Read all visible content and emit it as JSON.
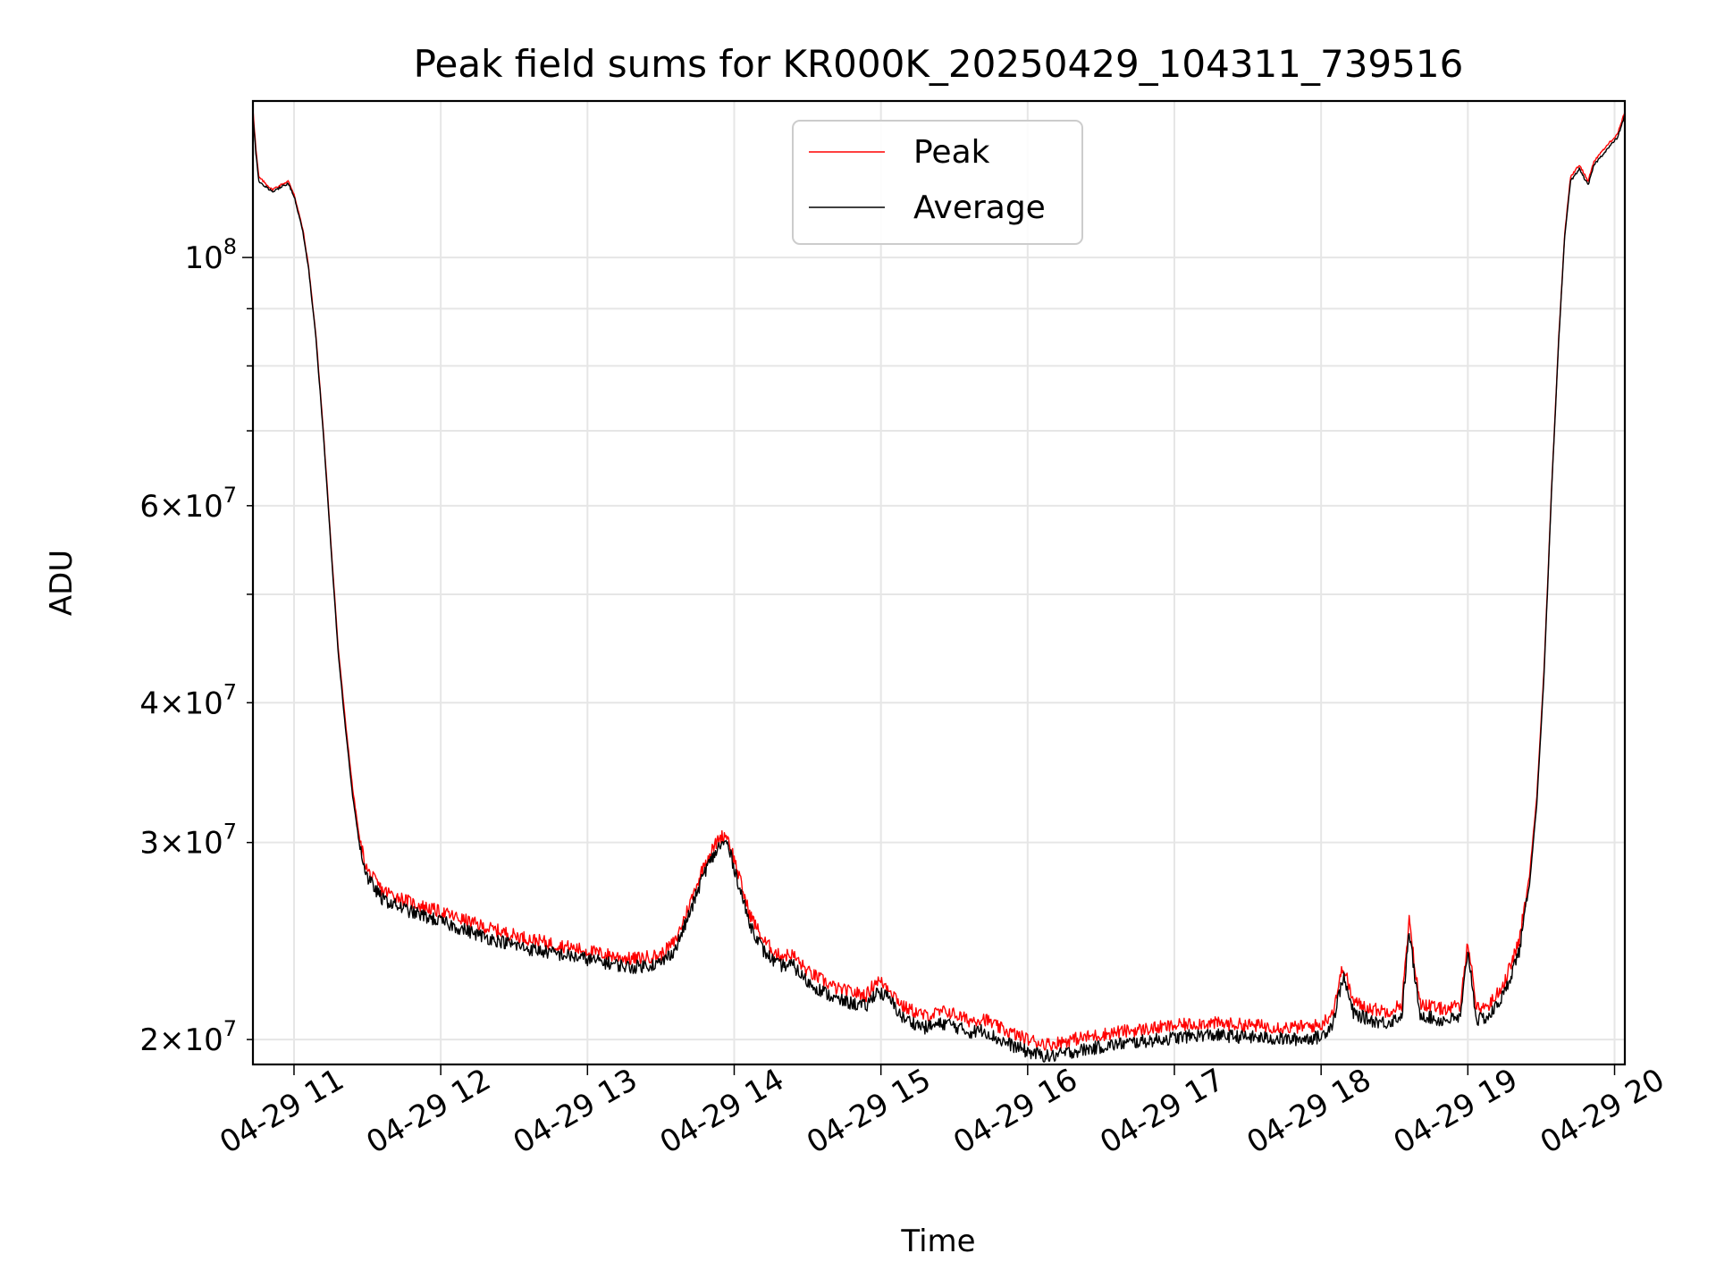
{
  "chart_data": {
    "type": "line",
    "title": "Peak field sums for KR000K_20250429_104311_739516",
    "xlabel": "Time",
    "ylabel": "ADU",
    "x_range_hours": [
      10.72,
      20.07
    ],
    "y_scale": "log",
    "ylim": [
      19000000,
      138000000
    ],
    "grid": true,
    "legend_position": "top-center",
    "x_ticks": [
      {
        "hour": 11,
        "label": "04-29 11"
      },
      {
        "hour": 12,
        "label": "04-29 12"
      },
      {
        "hour": 13,
        "label": "04-29 13"
      },
      {
        "hour": 14,
        "label": "04-29 14"
      },
      {
        "hour": 15,
        "label": "04-29 15"
      },
      {
        "hour": 16,
        "label": "04-29 16"
      },
      {
        "hour": 17,
        "label": "04-29 17"
      },
      {
        "hour": 18,
        "label": "04-29 18"
      },
      {
        "hour": 19,
        "label": "04-29 19"
      },
      {
        "hour": 20,
        "label": "04-29 20"
      }
    ],
    "y_major_ticks": [
      {
        "value": 100000000,
        "base": "10",
        "exp": "8"
      }
    ],
    "y_minor_labeled_ticks": [
      {
        "value": 20000000,
        "mant": "2",
        "base": "10",
        "exp": "7"
      },
      {
        "value": 30000000,
        "mant": "3",
        "base": "10",
        "exp": "7"
      },
      {
        "value": 40000000,
        "mant": "4",
        "base": "10",
        "exp": "7"
      },
      {
        "value": 60000000,
        "mant": "6",
        "base": "10",
        "exp": "7"
      }
    ],
    "y_minor_unlabeled_ticks": [
      50000000,
      70000000,
      80000000,
      90000000
    ],
    "series": [
      {
        "name": "Peak",
        "color": "#ff0000",
        "points": [
          [
            10.72,
            136000000
          ],
          [
            10.74,
            125000000
          ],
          [
            10.76,
            118000000
          ],
          [
            10.85,
            115000000
          ],
          [
            10.96,
            117000000
          ],
          [
            11.0,
            114000000
          ],
          [
            11.06,
            106000000
          ],
          [
            11.1,
            98000000
          ],
          [
            11.15,
            85000000
          ],
          [
            11.2,
            70000000
          ],
          [
            11.25,
            56000000
          ],
          [
            11.3,
            45000000
          ],
          [
            11.35,
            38500000
          ],
          [
            11.4,
            33500000
          ],
          [
            11.45,
            30000000
          ],
          [
            11.5,
            28300000
          ],
          [
            11.6,
            27200000
          ],
          [
            11.8,
            26500000
          ],
          [
            12.0,
            26000000
          ],
          [
            12.3,
            25200000
          ],
          [
            12.6,
            24600000
          ],
          [
            13.0,
            24000000
          ],
          [
            13.3,
            23600000
          ],
          [
            13.5,
            23800000
          ],
          [
            13.6,
            24500000
          ],
          [
            13.7,
            26500000
          ],
          [
            13.8,
            28800000
          ],
          [
            13.9,
            30300000
          ],
          [
            13.95,
            30500000
          ],
          [
            14.0,
            29000000
          ],
          [
            14.1,
            26000000
          ],
          [
            14.2,
            24500000
          ],
          [
            14.3,
            23800000
          ],
          [
            14.4,
            23800000
          ],
          [
            14.5,
            23000000
          ],
          [
            14.7,
            22200000
          ],
          [
            14.9,
            21900000
          ],
          [
            14.97,
            22600000
          ],
          [
            15.05,
            22300000
          ],
          [
            15.15,
            21400000
          ],
          [
            15.3,
            21000000
          ],
          [
            15.45,
            21200000
          ],
          [
            15.6,
            20800000
          ],
          [
            15.7,
            20900000
          ],
          [
            15.8,
            20500000
          ],
          [
            16.0,
            20000000
          ],
          [
            16.15,
            19800000
          ],
          [
            16.3,
            20000000
          ],
          [
            16.6,
            20300000
          ],
          [
            16.9,
            20500000
          ],
          [
            17.2,
            20700000
          ],
          [
            17.5,
            20600000
          ],
          [
            17.8,
            20500000
          ],
          [
            18.0,
            20600000
          ],
          [
            18.08,
            21200000
          ],
          [
            18.15,
            23300000
          ],
          [
            18.22,
            21600000
          ],
          [
            18.35,
            21300000
          ],
          [
            18.45,
            21200000
          ],
          [
            18.55,
            21500000
          ],
          [
            18.6,
            25500000
          ],
          [
            18.67,
            21600000
          ],
          [
            18.8,
            21300000
          ],
          [
            18.95,
            21400000
          ],
          [
            19.0,
            24600000
          ],
          [
            19.06,
            21300000
          ],
          [
            19.15,
            21500000
          ],
          [
            19.25,
            22500000
          ],
          [
            19.35,
            24500000
          ],
          [
            19.42,
            28000000
          ],
          [
            19.47,
            33000000
          ],
          [
            19.52,
            43000000
          ],
          [
            19.57,
            62000000
          ],
          [
            19.62,
            85000000
          ],
          [
            19.66,
            105000000
          ],
          [
            19.7,
            118000000
          ],
          [
            19.76,
            121000000
          ],
          [
            19.82,
            117000000
          ],
          [
            19.86,
            122000000
          ],
          [
            19.95,
            126000000
          ],
          [
            20.02,
            129000000
          ],
          [
            20.07,
            135000000
          ]
        ]
      },
      {
        "name": "Average",
        "color": "#000000",
        "points": [
          [
            10.72,
            134000000
          ],
          [
            10.74,
            124000000
          ],
          [
            10.76,
            117000000
          ],
          [
            10.85,
            114500000
          ],
          [
            10.96,
            116500000
          ],
          [
            11.0,
            113500000
          ],
          [
            11.06,
            105500000
          ],
          [
            11.1,
            97500000
          ],
          [
            11.15,
            84500000
          ],
          [
            11.2,
            69500000
          ],
          [
            11.25,
            55500000
          ],
          [
            11.3,
            44500000
          ],
          [
            11.35,
            38000000
          ],
          [
            11.4,
            33000000
          ],
          [
            11.45,
            29600000
          ],
          [
            11.5,
            27900000
          ],
          [
            11.6,
            26700000
          ],
          [
            11.8,
            26000000
          ],
          [
            12.0,
            25500000
          ],
          [
            12.3,
            24700000
          ],
          [
            12.6,
            24100000
          ],
          [
            13.0,
            23600000
          ],
          [
            13.3,
            23200000
          ],
          [
            13.5,
            23400000
          ],
          [
            13.6,
            24100000
          ],
          [
            13.7,
            26000000
          ],
          [
            13.8,
            28300000
          ],
          [
            13.9,
            29800000
          ],
          [
            13.95,
            30000000
          ],
          [
            14.0,
            28500000
          ],
          [
            14.1,
            25500000
          ],
          [
            14.2,
            24000000
          ],
          [
            14.3,
            23300000
          ],
          [
            14.4,
            23300000
          ],
          [
            14.5,
            22500000
          ],
          [
            14.7,
            21700000
          ],
          [
            14.9,
            21400000
          ],
          [
            14.97,
            22100000
          ],
          [
            15.05,
            21800000
          ],
          [
            15.15,
            20900000
          ],
          [
            15.3,
            20500000
          ],
          [
            15.45,
            20700000
          ],
          [
            15.6,
            20300000
          ],
          [
            15.7,
            20400000
          ],
          [
            15.8,
            20000000
          ],
          [
            16.0,
            19500000
          ],
          [
            16.15,
            19300000
          ],
          [
            16.3,
            19500000
          ],
          [
            16.6,
            19800000
          ],
          [
            16.9,
            20000000
          ],
          [
            17.2,
            20200000
          ],
          [
            17.5,
            20100000
          ],
          [
            17.8,
            20000000
          ],
          [
            18.0,
            20100000
          ],
          [
            18.08,
            20700000
          ],
          [
            18.15,
            22800000
          ],
          [
            18.22,
            21100000
          ],
          [
            18.35,
            20800000
          ],
          [
            18.45,
            20700000
          ],
          [
            18.55,
            21000000
          ],
          [
            18.6,
            25000000
          ],
          [
            18.67,
            21100000
          ],
          [
            18.8,
            20800000
          ],
          [
            18.95,
            20900000
          ],
          [
            19.0,
            24100000
          ],
          [
            19.06,
            20800000
          ],
          [
            19.15,
            21000000
          ],
          [
            19.25,
            22000000
          ],
          [
            19.35,
            24000000
          ],
          [
            19.42,
            27500000
          ],
          [
            19.47,
            32500000
          ],
          [
            19.52,
            42500000
          ],
          [
            19.57,
            61500000
          ],
          [
            19.62,
            84500000
          ],
          [
            19.66,
            104500000
          ],
          [
            19.7,
            117000000
          ],
          [
            19.76,
            120000000
          ],
          [
            19.82,
            116000000
          ],
          [
            19.86,
            121000000
          ],
          [
            19.95,
            125000000
          ],
          [
            20.02,
            128000000
          ],
          [
            20.07,
            134000000
          ]
        ]
      }
    ]
  }
}
